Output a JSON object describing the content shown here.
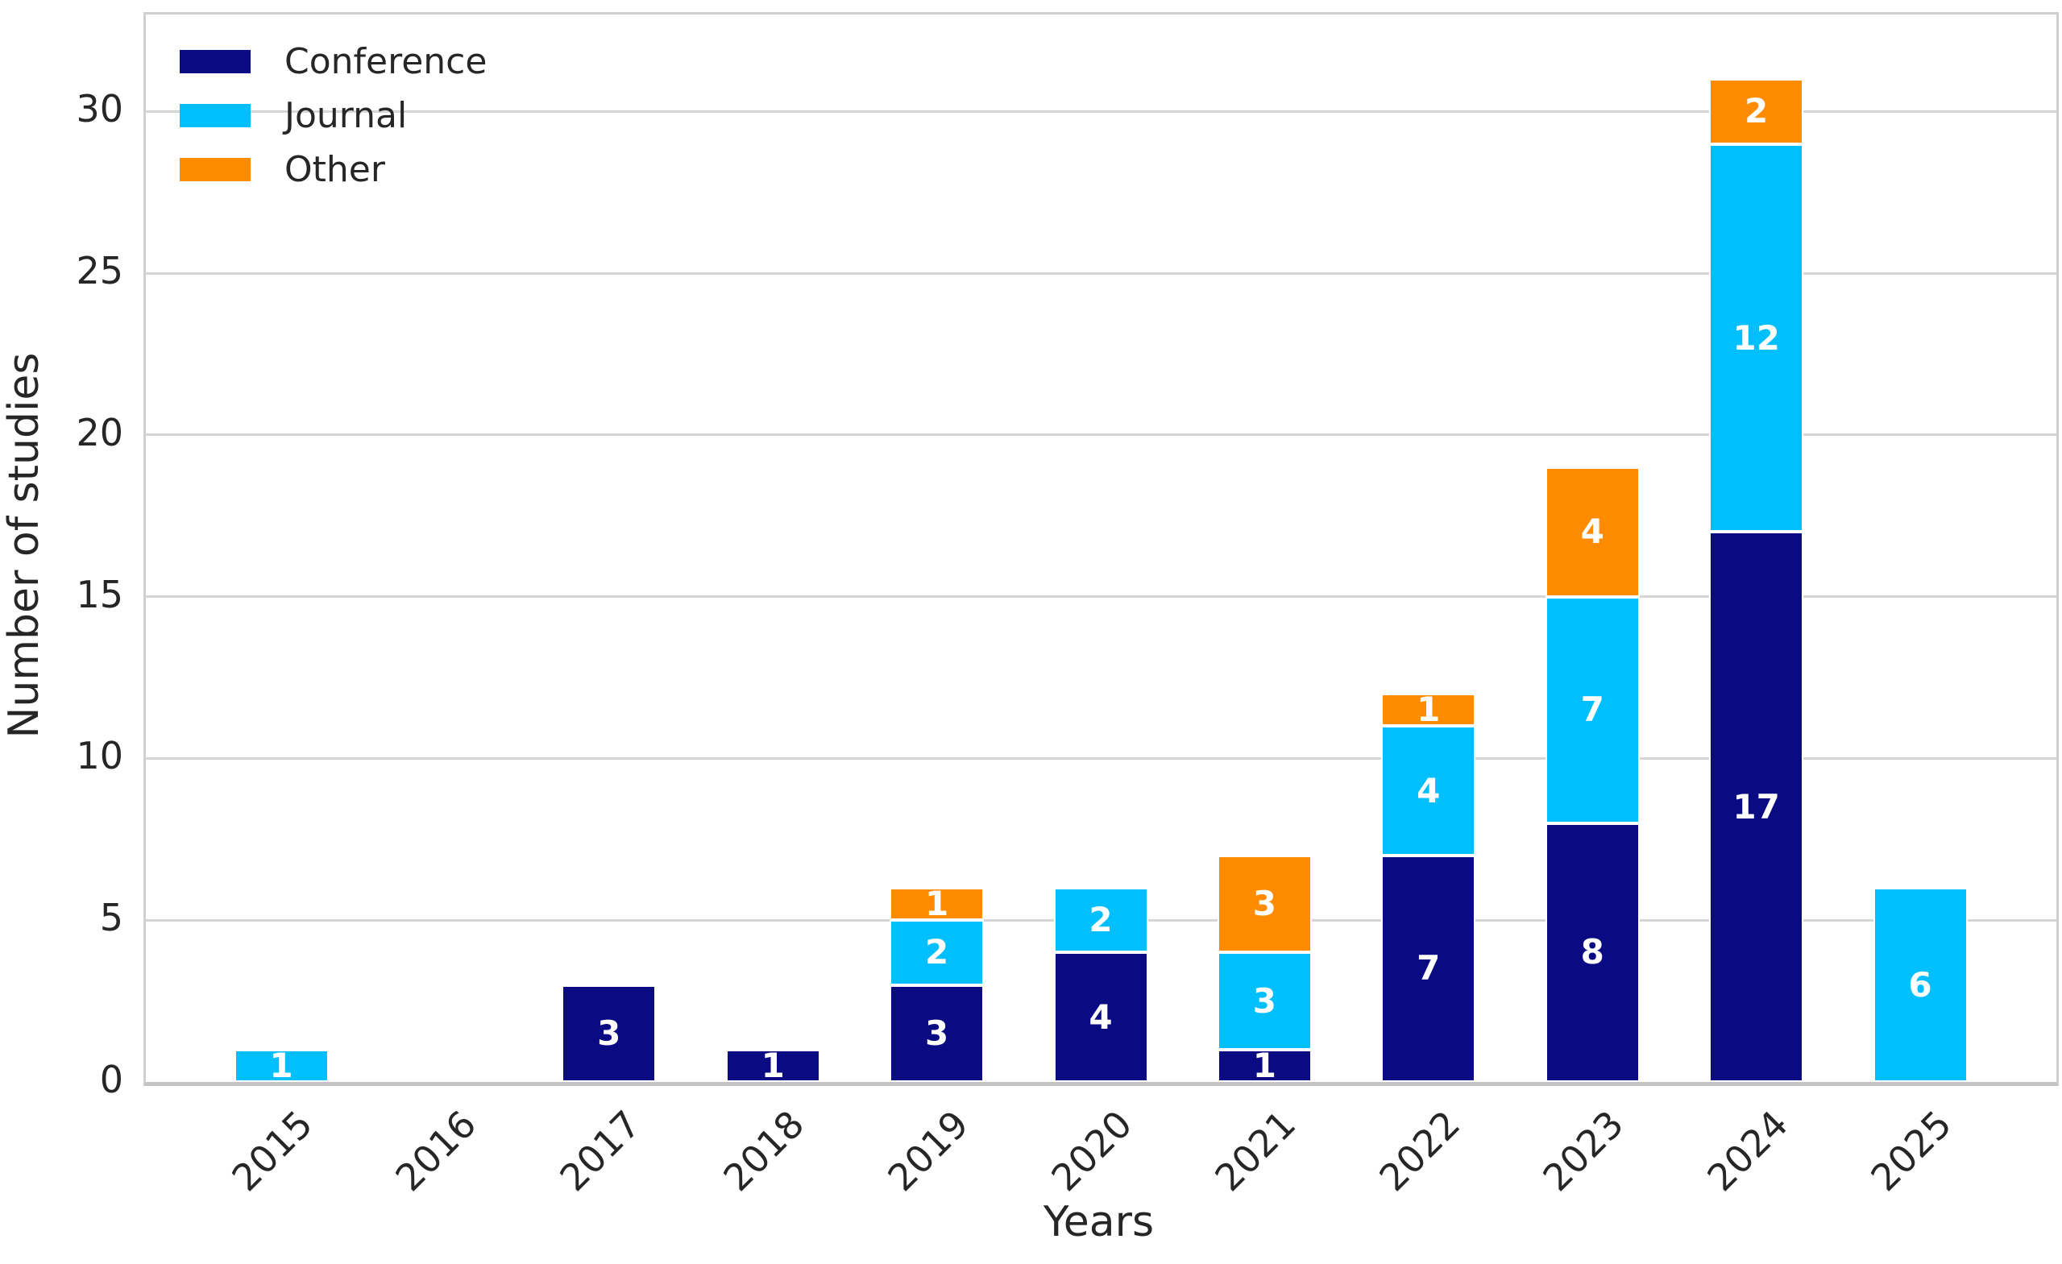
{
  "chart_data": {
    "type": "bar",
    "stacked": true,
    "title": "",
    "xlabel": "Years",
    "ylabel": "Number of studies",
    "categories": [
      "2015",
      "2016",
      "2017",
      "2018",
      "2019",
      "2020",
      "2021",
      "2022",
      "2023",
      "2024",
      "2025"
    ],
    "series": [
      {
        "name": "Conference",
        "color": "#0a0a82",
        "values": [
          0,
          0,
          3,
          1,
          3,
          4,
          1,
          7,
          8,
          17,
          0
        ]
      },
      {
        "name": "Journal",
        "color": "#00bfff",
        "values": [
          1,
          0,
          0,
          0,
          2,
          2,
          3,
          4,
          7,
          12,
          6
        ]
      },
      {
        "name": "Other",
        "color": "#ff8c00",
        "values": [
          0,
          0,
          0,
          0,
          1,
          0,
          3,
          1,
          4,
          2,
          0
        ]
      }
    ],
    "totals": [
      1,
      0,
      3,
      1,
      6,
      6,
      7,
      12,
      19,
      31,
      6
    ],
    "ylim": [
      0,
      33
    ],
    "yticks": [
      0,
      5,
      10,
      15,
      20,
      25,
      30
    ],
    "grid": "horizontal",
    "legend_position": "upper-left",
    "value_label_color": "#ffffff"
  },
  "style": {
    "text_color": "#262626",
    "grid_color": "#d6d6d6",
    "spine_color": "#cfcfcf",
    "background": "#ffffff"
  }
}
